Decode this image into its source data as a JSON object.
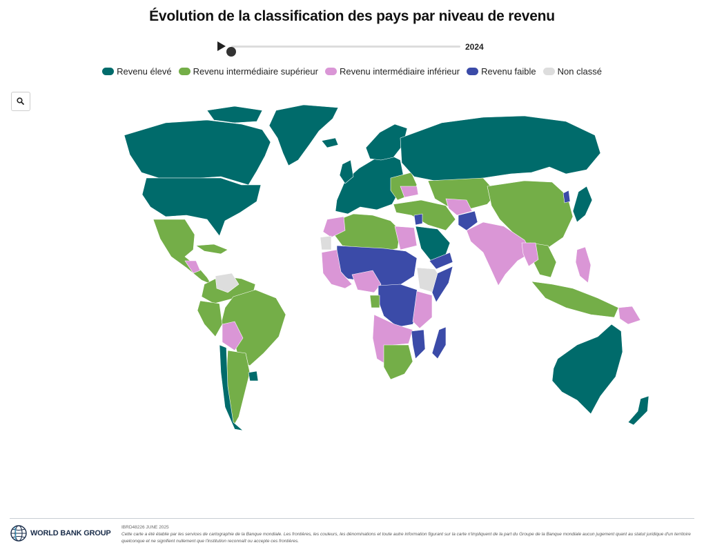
{
  "title": "Évolution de la classification des pays par niveau de revenu",
  "player": {
    "year": "2024",
    "progress": 0
  },
  "legend": [
    {
      "label": "Revenu élevé",
      "color": "#006b6b"
    },
    {
      "label": "Revenu intermédiaire supérieur",
      "color": "#74ae48"
    },
    {
      "label": "Revenu intermédiaire inférieur",
      "color": "#da96d6"
    },
    {
      "label": "Revenu faible",
      "color": "#3b4ba8"
    },
    {
      "label": "Non classé",
      "color": "#dddddd"
    }
  ],
  "toolbar": {
    "search_icon": "search-icon"
  },
  "footer": {
    "logo_text": "WORLD BANK GROUP",
    "map_code": "IBRD48226 JUNE 2025",
    "disclaimer": "Cette carte a été établie par les services de cartographie de la Banque mondiale. Les frontières, les couleurs, les dénominations et toute autre information figurant sur la carte n'impliquent de la part du Groupe de la Banque mondiale aucun jugement quant au statut juridique d'un territoire quelconque et ne signifient nullement que l'institution reconnaît ou accepte ces frontières."
  }
}
